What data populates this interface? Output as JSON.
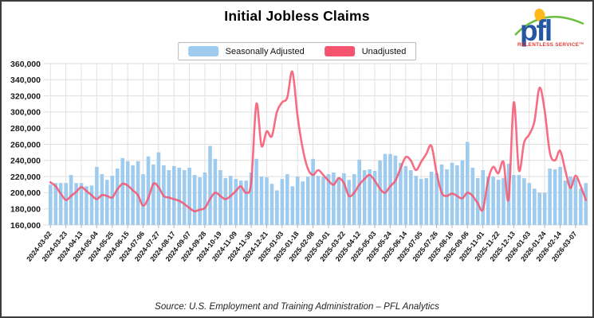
{
  "header": {
    "title": "Initial Jobless Claims"
  },
  "logo": {
    "wordmark": "pfl",
    "tagline": "RELENTLESS SERVICE™",
    "colors": {
      "wordmark_blue": "#2456a4",
      "sun_yellow": "#ffb81c",
      "swoosh_green": "#6fbe44",
      "tagline_red": "#e23b33"
    }
  },
  "legend": {
    "items": [
      {
        "label": "Seasonally Adjusted",
        "color": "#9fccee"
      },
      {
        "label": "Unadjusted",
        "color": "#f5536e"
      }
    ]
  },
  "source": "Source: U.S. Employment and Training Administration – PFL Analytics",
  "chart_data": {
    "type": "bar+line combo",
    "title": "Initial Jobless Claims",
    "ylim": [
      160000,
      360000
    ],
    "y_tick_step": 20000,
    "y_tick_labels": [
      "160,000",
      "180,000",
      "200,000",
      "220,000",
      "240,000",
      "260,000",
      "280,000",
      "300,000",
      "320,000",
      "340,000",
      "360,000"
    ],
    "grid": true,
    "legend_position": "top-center",
    "x_label_every_n_points": 3,
    "x_labels": [
      "2024-03-02",
      "2024-03-23",
      "2024-04-13",
      "2024-05-04",
      "2024-05-25",
      "2024-06-15",
      "2024-07-06",
      "2024-07-27",
      "2024-08-17",
      "2024-09-07",
      "2024-09-28",
      "2024-10-19",
      "2024-11-09",
      "2024-11-30",
      "2024-12-21",
      "2025-01-03",
      "2025-01-18",
      "2025-02-08",
      "2025-03-01",
      "2025-03-22",
      "2025-04-12",
      "2025-05-03",
      "2025-05-24",
      "2025-06-14",
      "2025-07-05",
      "2025-07-26",
      "2025-08-16",
      "2025-09-06",
      "2025-11-01",
      "2025-11-22",
      "2025-12-13",
      "2026-01-03",
      "2026-01-24",
      "2026-02-14",
      "2026-03-07"
    ],
    "series": [
      {
        "name": "Seasonally Adjusted",
        "type": "bar",
        "color": "#9fccee",
        "values": [
          210000,
          212000,
          212000,
          212000,
          222000,
          212000,
          212000,
          208000,
          209000,
          232000,
          223000,
          216000,
          221000,
          230000,
          243000,
          239000,
          234000,
          239000,
          223000,
          245000,
          235000,
          250000,
          234000,
          228000,
          233000,
          231000,
          228000,
          231000,
          222000,
          219000,
          225000,
          258000,
          242000,
          228000,
          218000,
          221000,
          217000,
          215000,
          215000,
          225000,
          242000,
          220000,
          219000,
          211000,
          203000,
          217000,
          223000,
          208000,
          220000,
          214000,
          220000,
          242000,
          221000,
          220000,
          223000,
          225000,
          219000,
          224000,
          216000,
          223000,
          241000,
          228000,
          229000,
          227000,
          240000,
          248000,
          248000,
          246000,
          237000,
          233000,
          228000,
          221000,
          217000,
          218000,
          226000,
          224000,
          235000,
          229000,
          237000,
          234000,
          240000,
          263000,
          231000,
          218000,
          228000,
          220000,
          220000,
          216000,
          218000,
          236000,
          222000,
          222000,
          218000,
          212000,
          205000,
          200000,
          200000,
          230000,
          229000,
          232000,
          215000,
          220000,
          218000,
          205000,
          212000
        ]
      },
      {
        "name": "Unadjusted",
        "type": "line",
        "color": "#f5536e",
        "values": [
          213000,
          208000,
          199000,
          191000,
          196000,
          201000,
          207000,
          202000,
          197000,
          192000,
          197000,
          196000,
          194000,
          204000,
          211000,
          209000,
          203000,
          197000,
          184000,
          193000,
          211000,
          207000,
          196000,
          194000,
          192000,
          190000,
          186000,
          181000,
          177000,
          179000,
          181000,
          192000,
          200000,
          196000,
          192000,
          196000,
          202000,
          208000,
          200000,
          213000,
          310000,
          258000,
          276000,
          270000,
          300000,
          312000,
          318000,
          350000,
          295000,
          255000,
          230000,
          222000,
          228000,
          222000,
          215000,
          210000,
          218000,
          212000,
          196000,
          200000,
          210000,
          217000,
          222000,
          215000,
          205000,
          200000,
          208000,
          215000,
          230000,
          244000,
          240000,
          228000,
          238000,
          248000,
          258000,
          225000,
          200000,
          196000,
          199000,
          196000,
          193000,
          200000,
          196000,
          187000,
          179000,
          215000,
          232000,
          224000,
          238000,
          192000,
          312000,
          228000,
          262000,
          272000,
          288000,
          330000,
          302000,
          250000,
          240000,
          252000,
          228000,
          206000,
          221000,
          208000,
          191000
        ]
      }
    ]
  }
}
